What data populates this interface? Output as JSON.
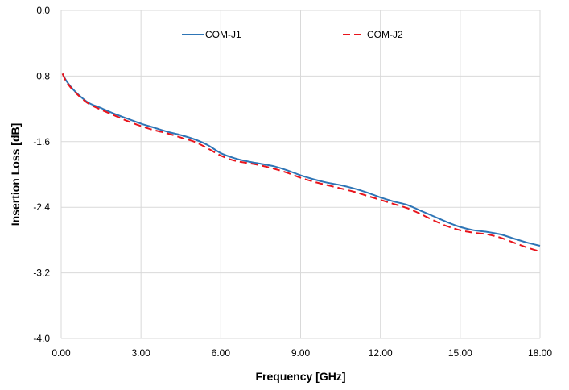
{
  "chart_data": {
    "type": "line",
    "title": "",
    "xlabel": "Frequency [GHz]",
    "ylabel": "Insertion Loss [dB]",
    "xlim": [
      0,
      18
    ],
    "ylim": [
      -4.0,
      0.0
    ],
    "x_ticks": [
      "0.00",
      "3.00",
      "6.00",
      "9.00",
      "12.00",
      "15.00",
      "18.00"
    ],
    "y_ticks": [
      "0.0",
      "-0.8",
      "-1.6",
      "-2.4",
      "-3.2",
      "-4.0"
    ],
    "grid": true,
    "legend_position": "top-center",
    "series": [
      {
        "name": "COM-J1",
        "color": "#2E75B6",
        "style": "solid",
        "x": [
          0.05,
          0.2,
          0.5,
          1.0,
          1.5,
          2.0,
          2.5,
          3.0,
          3.5,
          4.0,
          4.5,
          5.0,
          5.5,
          6.0,
          6.5,
          7.0,
          7.5,
          8.0,
          8.5,
          9.0,
          9.5,
          10.0,
          10.5,
          11.0,
          11.5,
          12.0,
          12.5,
          13.0,
          13.5,
          14.0,
          14.5,
          15.0,
          15.5,
          16.0,
          16.5,
          17.0,
          17.5,
          18.0
        ],
        "y": [
          -0.77,
          -0.86,
          -0.98,
          -1.12,
          -1.19,
          -1.26,
          -1.32,
          -1.38,
          -1.43,
          -1.48,
          -1.52,
          -1.57,
          -1.64,
          -1.74,
          -1.8,
          -1.84,
          -1.87,
          -1.9,
          -1.95,
          -2.01,
          -2.06,
          -2.1,
          -2.13,
          -2.17,
          -2.22,
          -2.28,
          -2.33,
          -2.37,
          -2.44,
          -2.51,
          -2.58,
          -2.64,
          -2.68,
          -2.7,
          -2.73,
          -2.78,
          -2.83,
          -2.87
        ]
      },
      {
        "name": "COM-J2",
        "color": "#E8141C",
        "style": "dashed",
        "x": [
          0.05,
          0.2,
          0.5,
          1.0,
          1.5,
          2.0,
          2.5,
          3.0,
          3.5,
          4.0,
          4.5,
          5.0,
          5.5,
          6.0,
          6.5,
          7.0,
          7.5,
          8.0,
          8.5,
          9.0,
          9.5,
          10.0,
          10.5,
          11.0,
          11.5,
          12.0,
          12.5,
          13.0,
          13.5,
          14.0,
          14.5,
          15.0,
          15.5,
          16.0,
          16.5,
          17.0,
          17.5,
          18.0
        ],
        "y": [
          -0.77,
          -0.87,
          -0.99,
          -1.13,
          -1.21,
          -1.28,
          -1.35,
          -1.41,
          -1.46,
          -1.5,
          -1.55,
          -1.6,
          -1.68,
          -1.77,
          -1.83,
          -1.86,
          -1.89,
          -1.93,
          -1.98,
          -2.04,
          -2.09,
          -2.13,
          -2.17,
          -2.21,
          -2.26,
          -2.31,
          -2.36,
          -2.41,
          -2.48,
          -2.56,
          -2.63,
          -2.68,
          -2.71,
          -2.73,
          -2.77,
          -2.83,
          -2.89,
          -2.94
        ]
      }
    ]
  }
}
